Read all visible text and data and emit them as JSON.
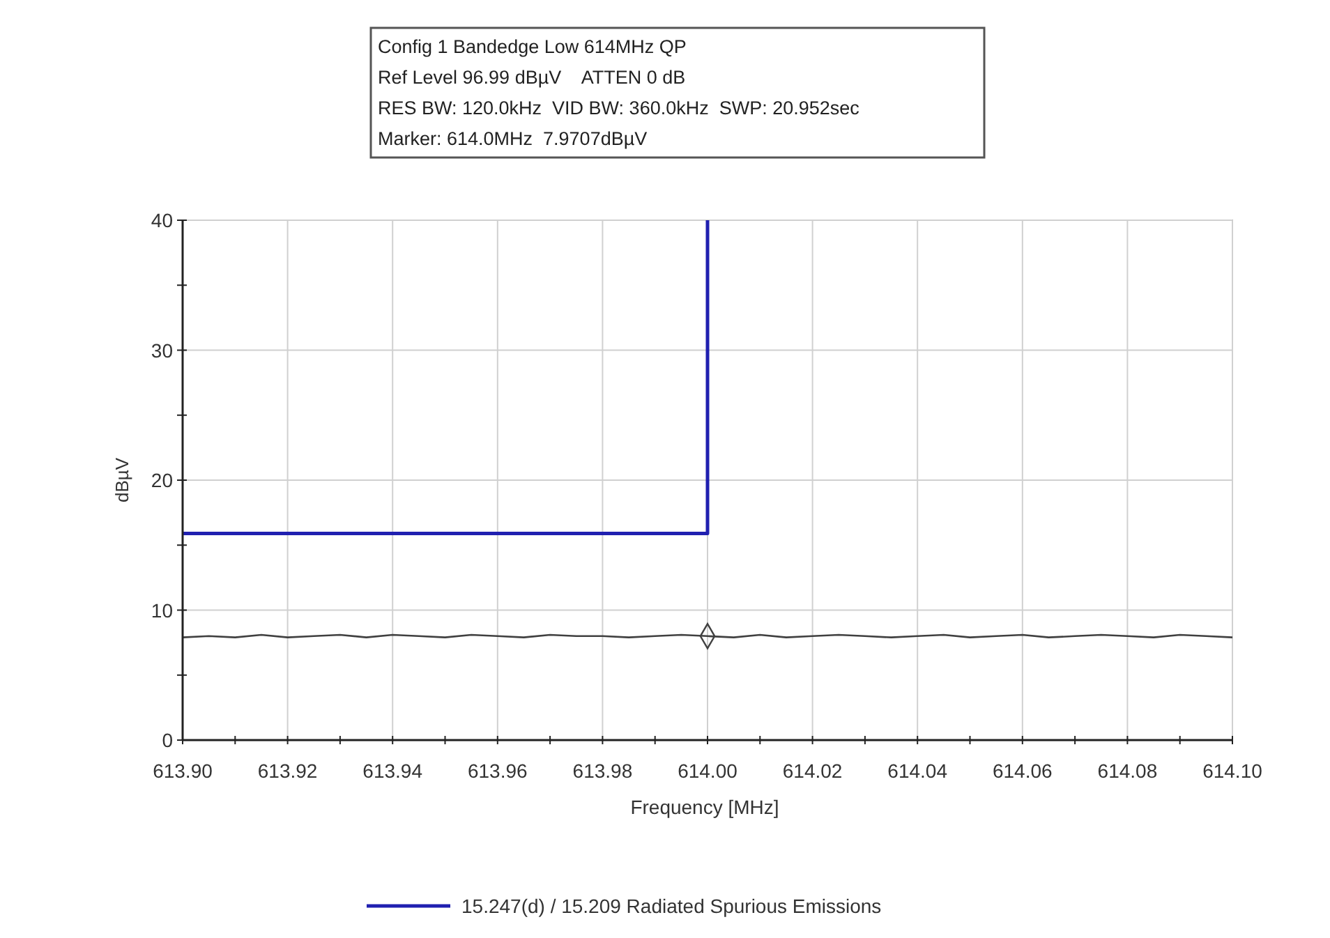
{
  "chart_data": {
    "type": "line",
    "xlabel": "Frequency [MHz]",
    "ylabel": "dBµV",
    "annotations": [
      "Config 1 Bandedge Low 614MHz QP",
      "Ref Level 96.99 dBµV    ATTEN 0 dB",
      "RES BW: 120.0kHz  VID BW: 360.0kHz  SWP: 20.952sec",
      "Marker: 614.0MHz  7.9707dBµV"
    ],
    "xlim": [
      613.9,
      614.1
    ],
    "xticks": [
      {
        "value": 613.9,
        "label": "613.90"
      },
      {
        "value": 613.91,
        "label": null
      },
      {
        "value": 613.92,
        "label": "613.92"
      },
      {
        "value": 613.93,
        "label": null
      },
      {
        "value": 613.94,
        "label": "613.94"
      },
      {
        "value": 613.95,
        "label": null
      },
      {
        "value": 613.96,
        "label": "613.96"
      },
      {
        "value": 613.97,
        "label": null
      },
      {
        "value": 613.98,
        "label": "613.98"
      },
      {
        "value": 613.99,
        "label": null
      },
      {
        "value": 614.0,
        "label": "614.00"
      },
      {
        "value": 614.01,
        "label": null
      },
      {
        "value": 614.02,
        "label": "614.02"
      },
      {
        "value": 614.03,
        "label": null
      },
      {
        "value": 614.04,
        "label": "614.04"
      },
      {
        "value": 614.05,
        "label": null
      },
      {
        "value": 614.06,
        "label": "614.06"
      },
      {
        "value": 614.07,
        "label": null
      },
      {
        "value": 614.08,
        "label": "614.08"
      },
      {
        "value": 614.09,
        "label": null
      },
      {
        "value": 614.1,
        "label": "614.10"
      }
    ],
    "ylim": [
      0,
      40
    ],
    "yticks": [
      0,
      {
        "value": 5,
        "label": null
      },
      10,
      {
        "value": 15,
        "label": null
      },
      20,
      {
        "value": 25,
        "label": null
      },
      30,
      {
        "value": 35,
        "label": null
      },
      40
    ],
    "grid": true,
    "legend": "bottom",
    "series": [
      {
        "name": "15.247(d) / 15.209 Radiated Spurious Emissions",
        "color": "#2020b0",
        "x": [
          613.9,
          614.0,
          614.0
        ],
        "values": [
          15.9,
          15.9,
          40
        ]
      },
      {
        "color": "#404040",
        "x": [
          613.9,
          613.905,
          613.91,
          613.915,
          613.92,
          613.925,
          613.93,
          613.935,
          613.94,
          613.945,
          613.95,
          613.955,
          613.96,
          613.965,
          613.97,
          613.975,
          613.98,
          613.985,
          613.99,
          613.995,
          614.0,
          614.005,
          614.01,
          614.015,
          614.02,
          614.025,
          614.03,
          614.035,
          614.04,
          614.045,
          614.05,
          614.055,
          614.06,
          614.065,
          614.07,
          614.075,
          614.08,
          614.085,
          614.09,
          614.095,
          614.1
        ],
        "values": [
          7.9,
          8.0,
          7.9,
          8.1,
          7.9,
          8.0,
          8.1,
          7.9,
          8.1,
          8.0,
          7.9,
          8.1,
          8.0,
          7.9,
          8.1,
          8.0,
          8.0,
          7.9,
          8.0,
          8.1,
          8.0,
          7.9,
          8.1,
          7.9,
          8.0,
          8.1,
          8.0,
          7.9,
          8.0,
          8.1,
          7.9,
          8.0,
          8.1,
          7.9,
          8.0,
          8.1,
          8.0,
          7.9,
          8.1,
          8.0,
          7.9
        ]
      },
      {
        "color": "#404040",
        "type": "scatter",
        "marker": "diamond",
        "x": [
          614.0
        ],
        "values": [
          8.0
        ]
      }
    ]
  }
}
